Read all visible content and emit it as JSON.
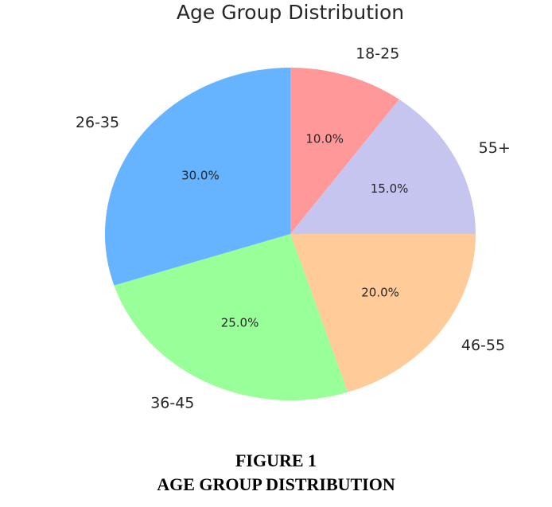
{
  "chart_data": {
    "type": "pie",
    "title": "Age Group Distribution",
    "categories": [
      "18-25",
      "55+",
      "46-55",
      "36-45",
      "26-35"
    ],
    "values": [
      10.0,
      15.0,
      20.0,
      25.0,
      30.0
    ],
    "value_labels": [
      "10.0%",
      "15.0%",
      "20.0%",
      "25.0%",
      "30.0%"
    ],
    "colors": [
      "#ff9999",
      "#c5c5f0",
      "#ffcc99",
      "#99ff99",
      "#66b3ff"
    ],
    "start_angle_deg": 90,
    "direction": "clockwise"
  },
  "caption": {
    "line1": "FIGURE 1",
    "line2": "AGE GROUP DISTRIBUTION"
  }
}
